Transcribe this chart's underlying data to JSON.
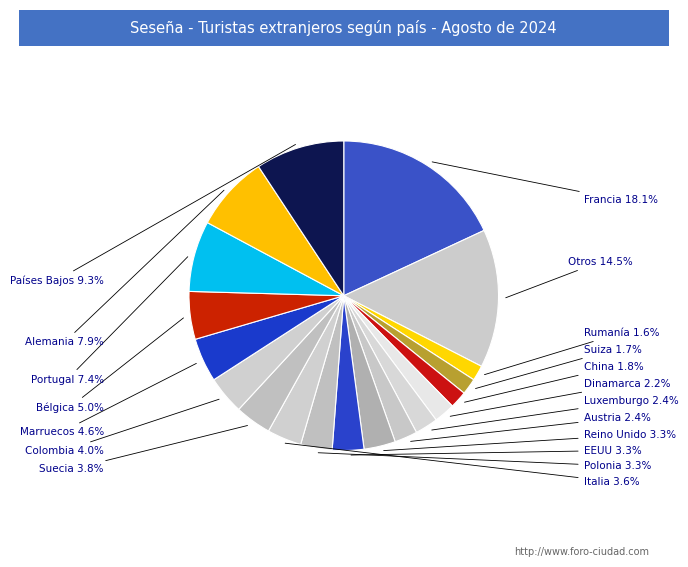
{
  "title": "Seseña - Turistas extranjeros según país - Agosto de 2024",
  "title_bg_color": "#4472c4",
  "title_text_color": "#ffffff",
  "footer": "http://www.foro-ciudad.com",
  "labels": [
    "Francia",
    "Otros",
    "Rumanía",
    "Suiza",
    "China",
    "Dinamarca",
    "Luxemburgo",
    "Austria",
    "Reino Unido",
    "EEUU",
    "Polonia",
    "Italia",
    "Suecia",
    "Colombia",
    "Marruecos",
    "Bélgica",
    "Portugal",
    "Alemania",
    "Países Bajos"
  ],
  "values": [
    18.1,
    14.5,
    1.6,
    1.7,
    1.8,
    2.2,
    2.4,
    2.4,
    3.3,
    3.3,
    3.3,
    3.6,
    3.8,
    4.0,
    4.6,
    5.0,
    7.4,
    7.9,
    9.3
  ],
  "color_map": {
    "Francia": "#3355cc",
    "Otros": "#d0d0d0",
    "Rumanía": "#ffd700",
    "Suiza": "#b8a830",
    "China": "#cc0000",
    "Dinamarca": "#e0e0e0",
    "Luxemburgo": "#d0d0d0",
    "Austria": "#c0c0c0",
    "Reino Unido": "#b0b0b0",
    "EEUU": "#3355cc",
    "Polonia": "#b8b8b8",
    "Italia": "#d8d8d8",
    "Suecia": "#c8c8c8",
    "Colombia": "#d0d0d0",
    "Marruecos": "#2244cc",
    "Bélgica": "#cc2200",
    "Portugal": "#00bfff",
    "Alemania": "#ffc000",
    "Países Bajos": "#0d1a5e"
  },
  "label_color": "#00008B",
  "background_color": "#ffffff",
  "startangle": 90
}
